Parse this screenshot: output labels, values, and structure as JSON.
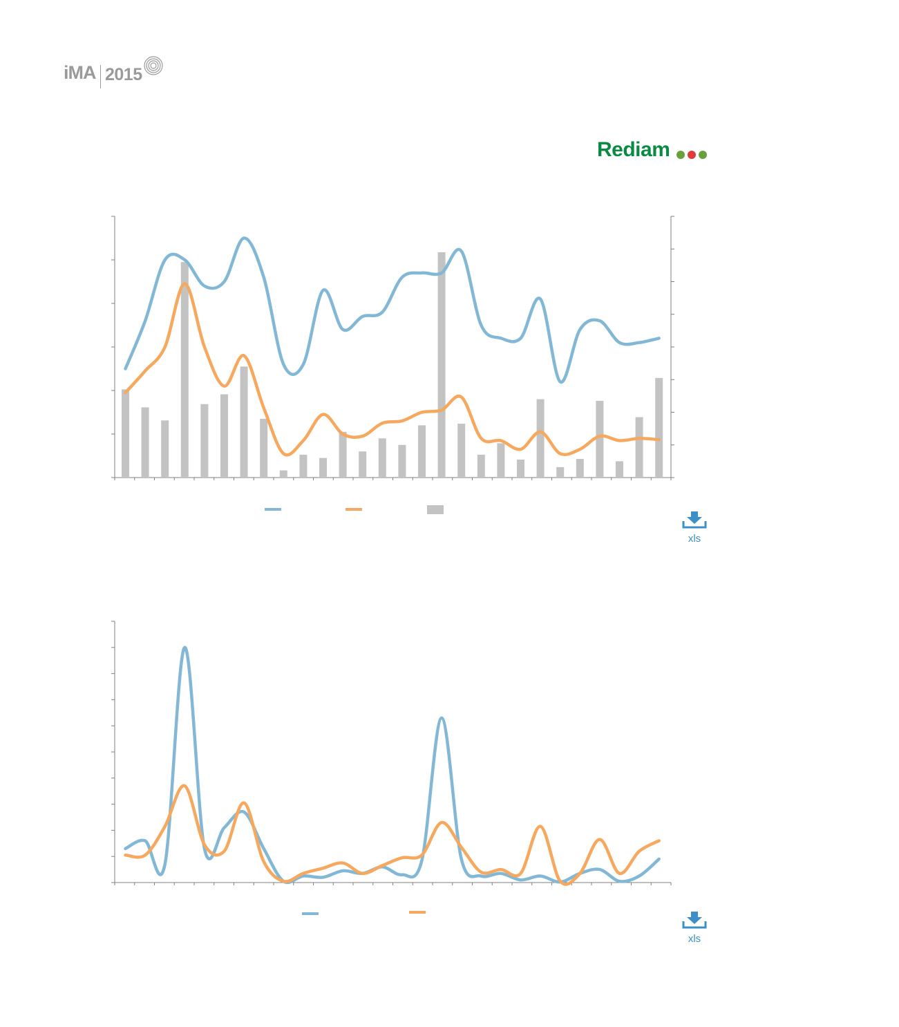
{
  "brand": {
    "ima_mark": "iMA",
    "ima_year": "2015",
    "rediam_name": "Rediam",
    "rediam_dot_colors": [
      "#6aa03c",
      "#e03b3b",
      "#6aa03c"
    ]
  },
  "colors": {
    "blue": "#82b7d6",
    "orange": "#f5a85e",
    "gray": "#c3c3c3",
    "axis": "#7f7f7f",
    "download": "#3d8fc8"
  },
  "downloads": [
    {
      "label": "xls",
      "icon": "download-tray-icon"
    },
    {
      "label": "xls",
      "icon": "download-tray-icon"
    }
  ],
  "chart_data": [
    {
      "type": "bar+line",
      "n_points": 28,
      "ylim_left": [
        0,
        6
      ],
      "ylim_right": [
        0,
        8
      ],
      "left_ticks": 6,
      "right_ticks": 8,
      "legend_placement": "bottom",
      "series": [
        {
          "kind": "line",
          "color": "#82b7d6",
          "axis": "left",
          "values": [
            2.5,
            3.6,
            5.0,
            5.0,
            4.4,
            4.5,
            5.5,
            4.6,
            2.6,
            2.6,
            4.3,
            3.4,
            3.7,
            3.8,
            4.6,
            4.7,
            4.7,
            5.2,
            3.5,
            3.2,
            3.2,
            4.1,
            2.2,
            3.4,
            3.6,
            3.1,
            3.1,
            3.2
          ]
        },
        {
          "kind": "line",
          "color": "#f5a85e",
          "axis": "left",
          "values": [
            1.95,
            2.45,
            3.0,
            4.45,
            3.0,
            2.1,
            2.8,
            1.6,
            0.55,
            0.85,
            1.45,
            1.0,
            0.95,
            1.25,
            1.3,
            1.5,
            1.55,
            1.85,
            0.9,
            0.85,
            0.65,
            1.05,
            0.55,
            0.65,
            0.95,
            0.85,
            0.9,
            0.87
          ]
        },
        {
          "kind": "bar",
          "color": "#c3c3c3",
          "axis": "right",
          "values": [
            2.7,
            2.15,
            1.75,
            6.6,
            2.25,
            2.55,
            3.4,
            1.8,
            0.22,
            0.7,
            0.6,
            1.4,
            0.8,
            1.2,
            1.0,
            1.6,
            6.9,
            1.65,
            0.7,
            1.05,
            0.55,
            2.4,
            0.32,
            0.57,
            2.35,
            0.5,
            1.85,
            3.05
          ]
        }
      ]
    },
    {
      "type": "line",
      "n_points": 28,
      "ylim": [
        0,
        10
      ],
      "y_ticks": 10,
      "legend_placement": "bottom",
      "series": [
        {
          "kind": "line",
          "color": "#82b7d6",
          "values": [
            1.3,
            1.6,
            0.7,
            9.0,
            1.3,
            2.1,
            2.7,
            1.3,
            0.05,
            0.25,
            0.2,
            0.45,
            0.35,
            0.6,
            0.3,
            0.85,
            6.3,
            0.9,
            0.25,
            0.35,
            0.1,
            0.25,
            0.02,
            0.35,
            0.5,
            0.05,
            0.25,
            0.9
          ]
        },
        {
          "kind": "line",
          "color": "#f5a85e",
          "values": [
            1.05,
            1.05,
            2.15,
            3.7,
            1.45,
            1.2,
            3.05,
            0.8,
            0.05,
            0.35,
            0.55,
            0.75,
            0.35,
            0.65,
            0.95,
            1.05,
            2.3,
            1.35,
            0.4,
            0.5,
            0.35,
            2.15,
            0.05,
            0.35,
            1.65,
            0.35,
            1.2,
            1.6
          ]
        }
      ]
    }
  ]
}
